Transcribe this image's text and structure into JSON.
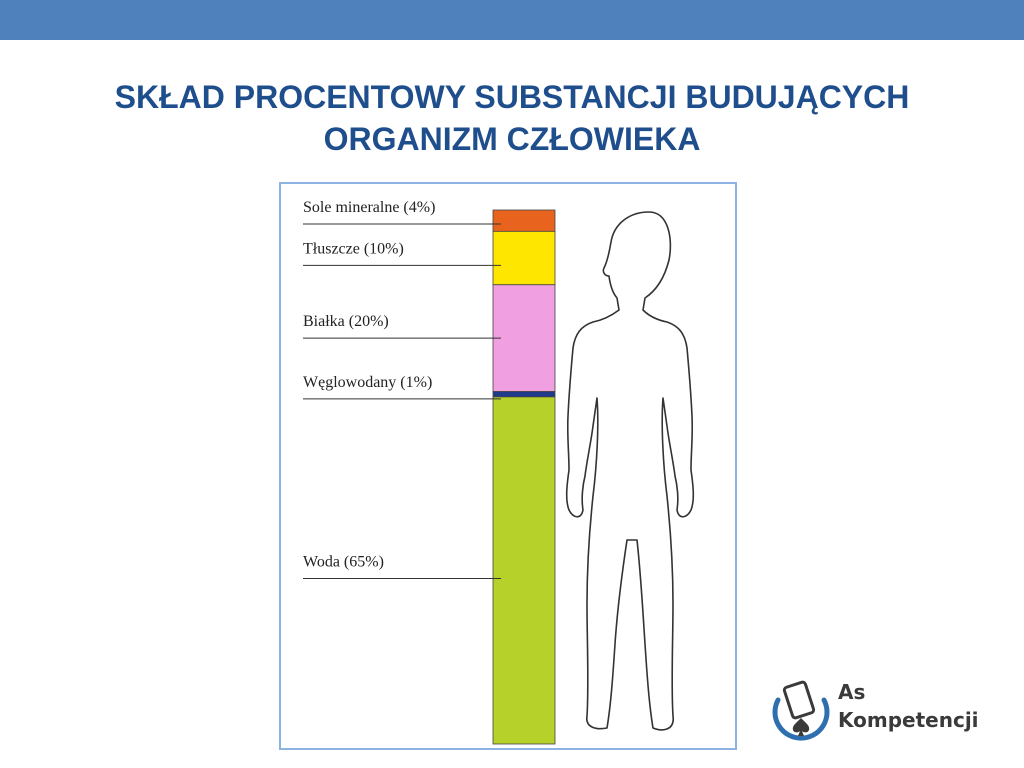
{
  "slide": {
    "title_line1": "Skład procentowy substancji budujących",
    "title_line2": "organizm człowieka"
  },
  "logo": {
    "line1": "As",
    "line2": "Kompetencji"
  },
  "colors": {
    "top_bar": "#4f81bd",
    "title": "#1f4e8c",
    "frame": "#8db3e2"
  },
  "chart_data": {
    "type": "bar",
    "stacked": true,
    "categories": [
      "Sole mineralne (4%)",
      "Tłuszcze (10%)",
      "Białka (20%)",
      "Węglowodany (1%)",
      "Woda (65%)"
    ],
    "values": [
      4,
      10,
      20,
      1,
      65
    ],
    "unit": "%",
    "colors": [
      "#e8641e",
      "#ffe600",
      "#f0a0e0",
      "#1f3a8a",
      "#b5d12a"
    ],
    "illustration": "human-body-outline"
  }
}
